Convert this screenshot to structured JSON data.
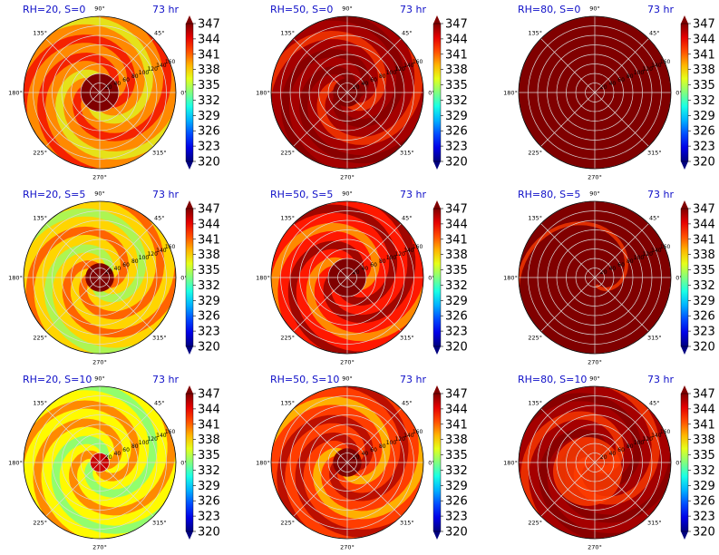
{
  "chart_data": {
    "type": "heatmap",
    "projection": "polar",
    "layout": {
      "rows": 3,
      "cols": 3
    },
    "colormap": "jet",
    "color_range": [
      320,
      347
    ],
    "colorbar_ticks": [
      "347",
      "344",
      "341",
      "338",
      "335",
      "332",
      "329",
      "326",
      "323",
      "320"
    ],
    "angle_ticks": [
      "0°",
      "45°",
      "90°",
      "135°",
      "180°",
      "225°",
      "270°",
      "315°"
    ],
    "radial_ticks": [
      "20",
      "40",
      "60",
      "80",
      "100",
      "120",
      "140",
      "160"
    ],
    "time_label": "73 hr",
    "panels": [
      {
        "title": "RH=20, S=0",
        "rh": 20,
        "s": 0,
        "background_value": 340,
        "eye_value": 347,
        "eye_radius": 40,
        "pattern": "spiral bands"
      },
      {
        "title": "RH=50, S=0",
        "rh": 50,
        "s": 0,
        "background_value": 346,
        "eye_value": 347,
        "eye_radius": 30,
        "pattern": "spiral bands"
      },
      {
        "title": "RH=80, S=0",
        "rh": 80,
        "s": 0,
        "background_value": 347,
        "eye_value": 347,
        "eye_radius": 0,
        "pattern": "uniform"
      },
      {
        "title": "RH=20, S=5",
        "rh": 20,
        "s": 5,
        "background_value": 338,
        "eye_value": 347,
        "eye_radius": 30,
        "pattern": "spiral bands"
      },
      {
        "title": "RH=50, S=5",
        "rh": 50,
        "s": 5,
        "background_value": 343,
        "eye_value": 347,
        "eye_radius": 40,
        "pattern": "spiral bands"
      },
      {
        "title": "RH=80, S=5",
        "rh": 80,
        "s": 5,
        "background_value": 347,
        "eye_value": 347,
        "eye_radius": 0,
        "pattern": "nearly uniform"
      },
      {
        "title": "RH=20, S=10",
        "rh": 20,
        "s": 10,
        "background_value": 337,
        "eye_value": 345,
        "eye_radius": 20,
        "pattern": "patchy"
      },
      {
        "title": "RH=50, S=10",
        "rh": 50,
        "s": 10,
        "background_value": 342,
        "eye_value": 347,
        "eye_radius": 30,
        "pattern": "asymmetric bands"
      },
      {
        "title": "RH=80, S=10",
        "rh": 80,
        "s": 10,
        "background_value": 346,
        "eye_value": 342,
        "eye_radius": 0,
        "pattern": "central patch"
      }
    ]
  }
}
